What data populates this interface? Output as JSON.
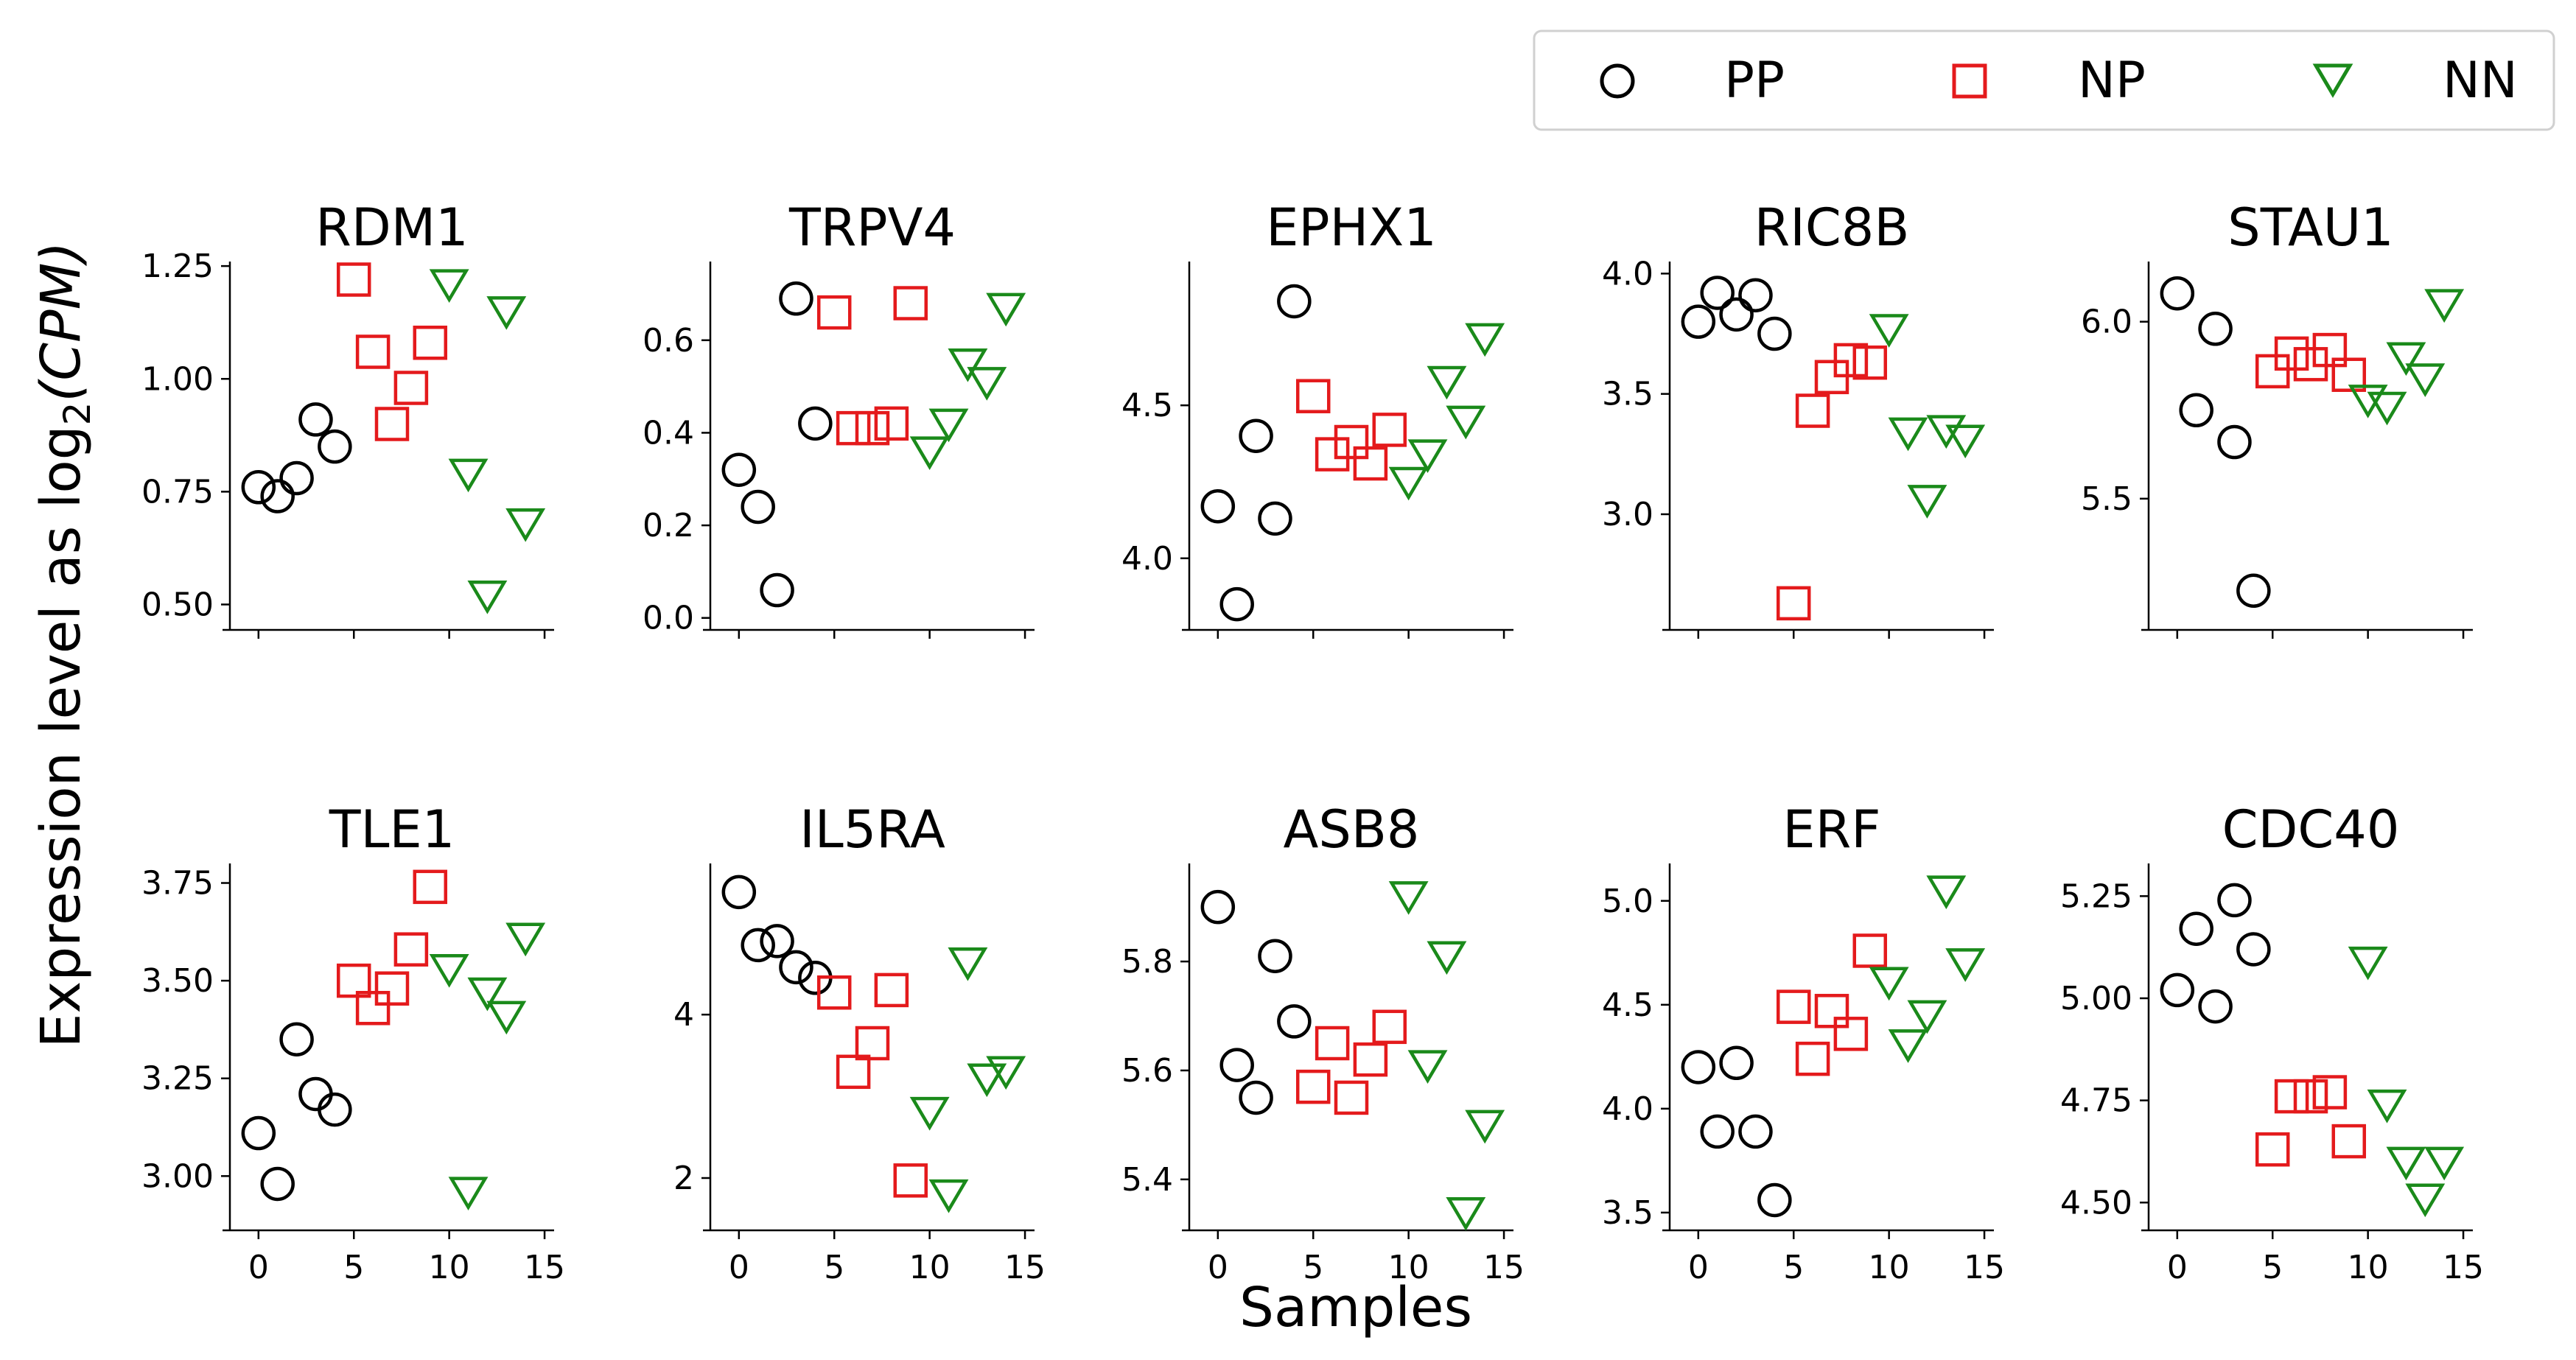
{
  "colors": {
    "PP": "#000000",
    "NP": "#e41a1c",
    "NN": "#1a8a1a"
  },
  "legend": [
    {
      "key": "PP",
      "label": "PP",
      "marker": "circle"
    },
    {
      "key": "NP",
      "label": "NP",
      "marker": "square"
    },
    {
      "key": "NN",
      "label": "NN",
      "marker": "triangle-down"
    }
  ],
  "xlabel": "Samples",
  "ylabel_prefix": "Expression level as log",
  "ylabel_sub": "2",
  "ylabel_var": "(CPM)",
  "chart_data": [
    {
      "type": "scatter",
      "title": "RDM1",
      "xlim": [
        -1.5,
        15.5
      ],
      "ylim": [
        0.46,
        1.26
      ],
      "xticks": [
        0,
        5,
        10,
        15
      ],
      "xtick_labels": [
        "",
        "",
        "",
        ""
      ],
      "yticks": [
        0.5,
        0.75,
        1.0,
        1.25
      ],
      "ytick_labels": [
        "0.50",
        "0.75",
        "1.00",
        "1.25"
      ],
      "series": [
        {
          "name": "PP",
          "x": [
            0,
            1,
            2,
            3,
            4
          ],
          "y": [
            0.76,
            0.74,
            0.78,
            0.91,
            0.85
          ]
        },
        {
          "name": "NP",
          "x": [
            5,
            6,
            7,
            8,
            9
          ],
          "y": [
            1.22,
            1.06,
            0.9,
            0.98,
            1.08
          ]
        },
        {
          "name": "NN",
          "x": [
            10,
            11,
            12,
            13,
            14
          ],
          "y": [
            1.21,
            0.79,
            0.52,
            1.15,
            0.68
          ]
        }
      ]
    },
    {
      "type": "scatter",
      "title": "TRPV4",
      "xlim": [
        -1.5,
        15.5
      ],
      "ylim": [
        -0.01,
        0.77
      ],
      "xticks": [
        0,
        5,
        10,
        15
      ],
      "xtick_labels": [
        "",
        "",
        "",
        ""
      ],
      "yticks": [
        0.0,
        0.2,
        0.4,
        0.6
      ],
      "ytick_labels": [
        "0.0",
        "0.2",
        "0.4",
        "0.6"
      ],
      "series": [
        {
          "name": "PP",
          "x": [
            0,
            1,
            2,
            3,
            4
          ],
          "y": [
            0.32,
            0.24,
            0.06,
            0.69,
            0.42
          ]
        },
        {
          "name": "NP",
          "x": [
            5,
            6,
            7,
            8,
            9
          ],
          "y": [
            0.66,
            0.41,
            0.41,
            0.42,
            0.68
          ]
        },
        {
          "name": "NN",
          "x": [
            10,
            11,
            12,
            13,
            14
          ],
          "y": [
            0.36,
            0.42,
            0.55,
            0.51,
            0.67
          ]
        }
      ]
    },
    {
      "type": "scatter",
      "title": "EPHX1",
      "xlim": [
        -1.5,
        15.5
      ],
      "ylim": [
        3.79,
        4.97
      ],
      "xticks": [
        0,
        5,
        10,
        15
      ],
      "xtick_labels": [
        "",
        "",
        "",
        ""
      ],
      "yticks": [
        4.0,
        4.5
      ],
      "ytick_labels": [
        "4.0",
        "4.5"
      ],
      "series": [
        {
          "name": "PP",
          "x": [
            0,
            1,
            2,
            3,
            4
          ],
          "y": [
            4.17,
            3.85,
            4.4,
            4.13,
            4.84
          ]
        },
        {
          "name": "NP",
          "x": [
            5,
            6,
            7,
            8,
            9
          ],
          "y": [
            4.53,
            4.34,
            4.38,
            4.31,
            4.42
          ]
        },
        {
          "name": "NN",
          "x": [
            10,
            11,
            12,
            13,
            14
          ],
          "y": [
            4.25,
            4.34,
            4.58,
            4.45,
            4.72
          ]
        }
      ]
    },
    {
      "type": "scatter",
      "title": "RIC8B",
      "xlim": [
        -1.5,
        15.5
      ],
      "ylim": [
        2.55,
        4.05
      ],
      "xticks": [
        0,
        5,
        10,
        15
      ],
      "xtick_labels": [
        "",
        "",
        "",
        ""
      ],
      "yticks": [
        3.0,
        3.5,
        4.0
      ],
      "ytick_labels": [
        "3.0",
        "3.5",
        "4.0"
      ],
      "series": [
        {
          "name": "PP",
          "x": [
            0,
            1,
            2,
            3,
            4
          ],
          "y": [
            3.8,
            3.92,
            3.83,
            3.91,
            3.75
          ]
        },
        {
          "name": "NP",
          "x": [
            5,
            6,
            7,
            8,
            9
          ],
          "y": [
            2.63,
            3.43,
            3.57,
            3.64,
            3.63
          ]
        },
        {
          "name": "NN",
          "x": [
            10,
            11,
            12,
            13,
            14
          ],
          "y": [
            3.77,
            3.34,
            3.06,
            3.35,
            3.31
          ]
        }
      ]
    },
    {
      "type": "scatter",
      "title": "STAU1",
      "xlim": [
        -1.5,
        15.5
      ],
      "ylim": [
        5.15,
        6.17
      ],
      "xticks": [
        0,
        5,
        10,
        15
      ],
      "xtick_labels": [
        "",
        "",
        "",
        ""
      ],
      "yticks": [
        5.5,
        6.0
      ],
      "ytick_labels": [
        "5.5",
        "6.0"
      ],
      "series": [
        {
          "name": "PP",
          "x": [
            0,
            1,
            2,
            3,
            4
          ],
          "y": [
            6.08,
            5.75,
            5.98,
            5.66,
            5.24
          ]
        },
        {
          "name": "NP",
          "x": [
            5,
            6,
            7,
            8,
            9
          ],
          "y": [
            5.86,
            5.91,
            5.88,
            5.92,
            5.85
          ]
        },
        {
          "name": "NN",
          "x": [
            10,
            11,
            12,
            13,
            14
          ],
          "y": [
            5.78,
            5.76,
            5.9,
            5.84,
            6.05
          ]
        }
      ]
    },
    {
      "type": "scatter",
      "title": "TLE1",
      "xlim": [
        -1.5,
        15.5
      ],
      "ylim": [
        2.88,
        3.8
      ],
      "xticks": [
        0,
        5,
        10,
        15
      ],
      "xtick_labels": [
        "0",
        "5",
        "10",
        "15"
      ],
      "yticks": [
        3.0,
        3.25,
        3.5,
        3.75
      ],
      "ytick_labels": [
        "3.00",
        "3.25",
        "3.50",
        "3.75"
      ],
      "series": [
        {
          "name": "PP",
          "x": [
            0,
            1,
            2,
            3,
            4
          ],
          "y": [
            3.11,
            2.98,
            3.35,
            3.21,
            3.17
          ]
        },
        {
          "name": "NP",
          "x": [
            5,
            6,
            7,
            8,
            9
          ],
          "y": [
            3.5,
            3.43,
            3.48,
            3.58,
            3.74
          ]
        },
        {
          "name": "NN",
          "x": [
            10,
            11,
            12,
            13,
            14
          ],
          "y": [
            3.53,
            2.96,
            3.47,
            3.41,
            3.61
          ]
        }
      ]
    },
    {
      "type": "scatter",
      "title": "IL5RA",
      "xlim": [
        -1.5,
        15.5
      ],
      "ylim": [
        1.45,
        5.85
      ],
      "xticks": [
        0,
        5,
        10,
        15
      ],
      "xtick_labels": [
        "0",
        "5",
        "10",
        "15"
      ],
      "yticks": [
        2,
        4
      ],
      "ytick_labels": [
        "2",
        "4"
      ],
      "series": [
        {
          "name": "PP",
          "x": [
            0,
            1,
            2,
            3,
            4
          ],
          "y": [
            5.5,
            4.85,
            4.9,
            4.58,
            4.45
          ]
        },
        {
          "name": "NP",
          "x": [
            5,
            6,
            7,
            8,
            9
          ],
          "y": [
            4.27,
            3.3,
            3.65,
            4.3,
            1.97
          ]
        },
        {
          "name": "NN",
          "x": [
            10,
            11,
            12,
            13,
            14
          ],
          "y": [
            2.81,
            1.8,
            4.64,
            3.22,
            3.31
          ]
        }
      ]
    },
    {
      "type": "scatter",
      "title": "ASB8",
      "xlim": [
        -1.5,
        15.5
      ],
      "ylim": [
        5.32,
        5.98
      ],
      "xticks": [
        0,
        5,
        10,
        15
      ],
      "xtick_labels": [
        "0",
        "5",
        "10",
        "15"
      ],
      "yticks": [
        5.4,
        5.6,
        5.8
      ],
      "ytick_labels": [
        "5.4",
        "5.6",
        "5.8"
      ],
      "series": [
        {
          "name": "PP",
          "x": [
            0,
            1,
            2,
            3,
            4
          ],
          "y": [
            5.9,
            5.61,
            5.55,
            5.81,
            5.69
          ]
        },
        {
          "name": "NP",
          "x": [
            5,
            6,
            7,
            8,
            9
          ],
          "y": [
            5.57,
            5.65,
            5.55,
            5.62,
            5.68
          ]
        },
        {
          "name": "NN",
          "x": [
            10,
            11,
            12,
            13,
            14
          ],
          "y": [
            5.92,
            5.61,
            5.81,
            5.34,
            5.5
          ]
        }
      ]
    },
    {
      "type": "scatter",
      "title": "ERF",
      "xlim": [
        -1.5,
        15.5
      ],
      "ylim": [
        3.45,
        5.18
      ],
      "xticks": [
        0,
        5,
        10,
        15
      ],
      "xtick_labels": [
        "0",
        "5",
        "10",
        "15"
      ],
      "yticks": [
        3.5,
        4.0,
        4.5,
        5.0
      ],
      "ytick_labels": [
        "3.5",
        "4.0",
        "4.5",
        "5.0"
      ],
      "series": [
        {
          "name": "PP",
          "x": [
            0,
            1,
            2,
            3,
            4
          ],
          "y": [
            4.2,
            3.89,
            4.22,
            3.89,
            3.56
          ]
        },
        {
          "name": "NP",
          "x": [
            5,
            6,
            7,
            8,
            9
          ],
          "y": [
            4.49,
            4.24,
            4.47,
            4.36,
            4.76
          ]
        },
        {
          "name": "NN",
          "x": [
            10,
            11,
            12,
            13,
            14
          ],
          "y": [
            4.61,
            4.31,
            4.45,
            5.05,
            4.7
          ]
        }
      ]
    },
    {
      "type": "scatter",
      "title": "CDC40",
      "xlim": [
        -1.5,
        15.5
      ],
      "ylim": [
        4.45,
        5.33
      ],
      "xticks": [
        0,
        5,
        10,
        15
      ],
      "xtick_labels": [
        "0",
        "5",
        "10",
        "15"
      ],
      "yticks": [
        4.5,
        4.75,
        5.0,
        5.25
      ],
      "ytick_labels": [
        "4.50",
        "4.75",
        "5.00",
        "5.25"
      ],
      "series": [
        {
          "name": "PP",
          "x": [
            0,
            1,
            2,
            3,
            4
          ],
          "y": [
            5.02,
            5.17,
            4.98,
            5.24,
            5.12
          ]
        },
        {
          "name": "NP",
          "x": [
            5,
            6,
            7,
            8,
            9
          ],
          "y": [
            4.63,
            4.76,
            4.76,
            4.77,
            4.65
          ]
        },
        {
          "name": "NN",
          "x": [
            10,
            11,
            12,
            13,
            14
          ],
          "y": [
            5.09,
            4.74,
            4.6,
            4.51,
            4.6
          ]
        }
      ]
    }
  ]
}
